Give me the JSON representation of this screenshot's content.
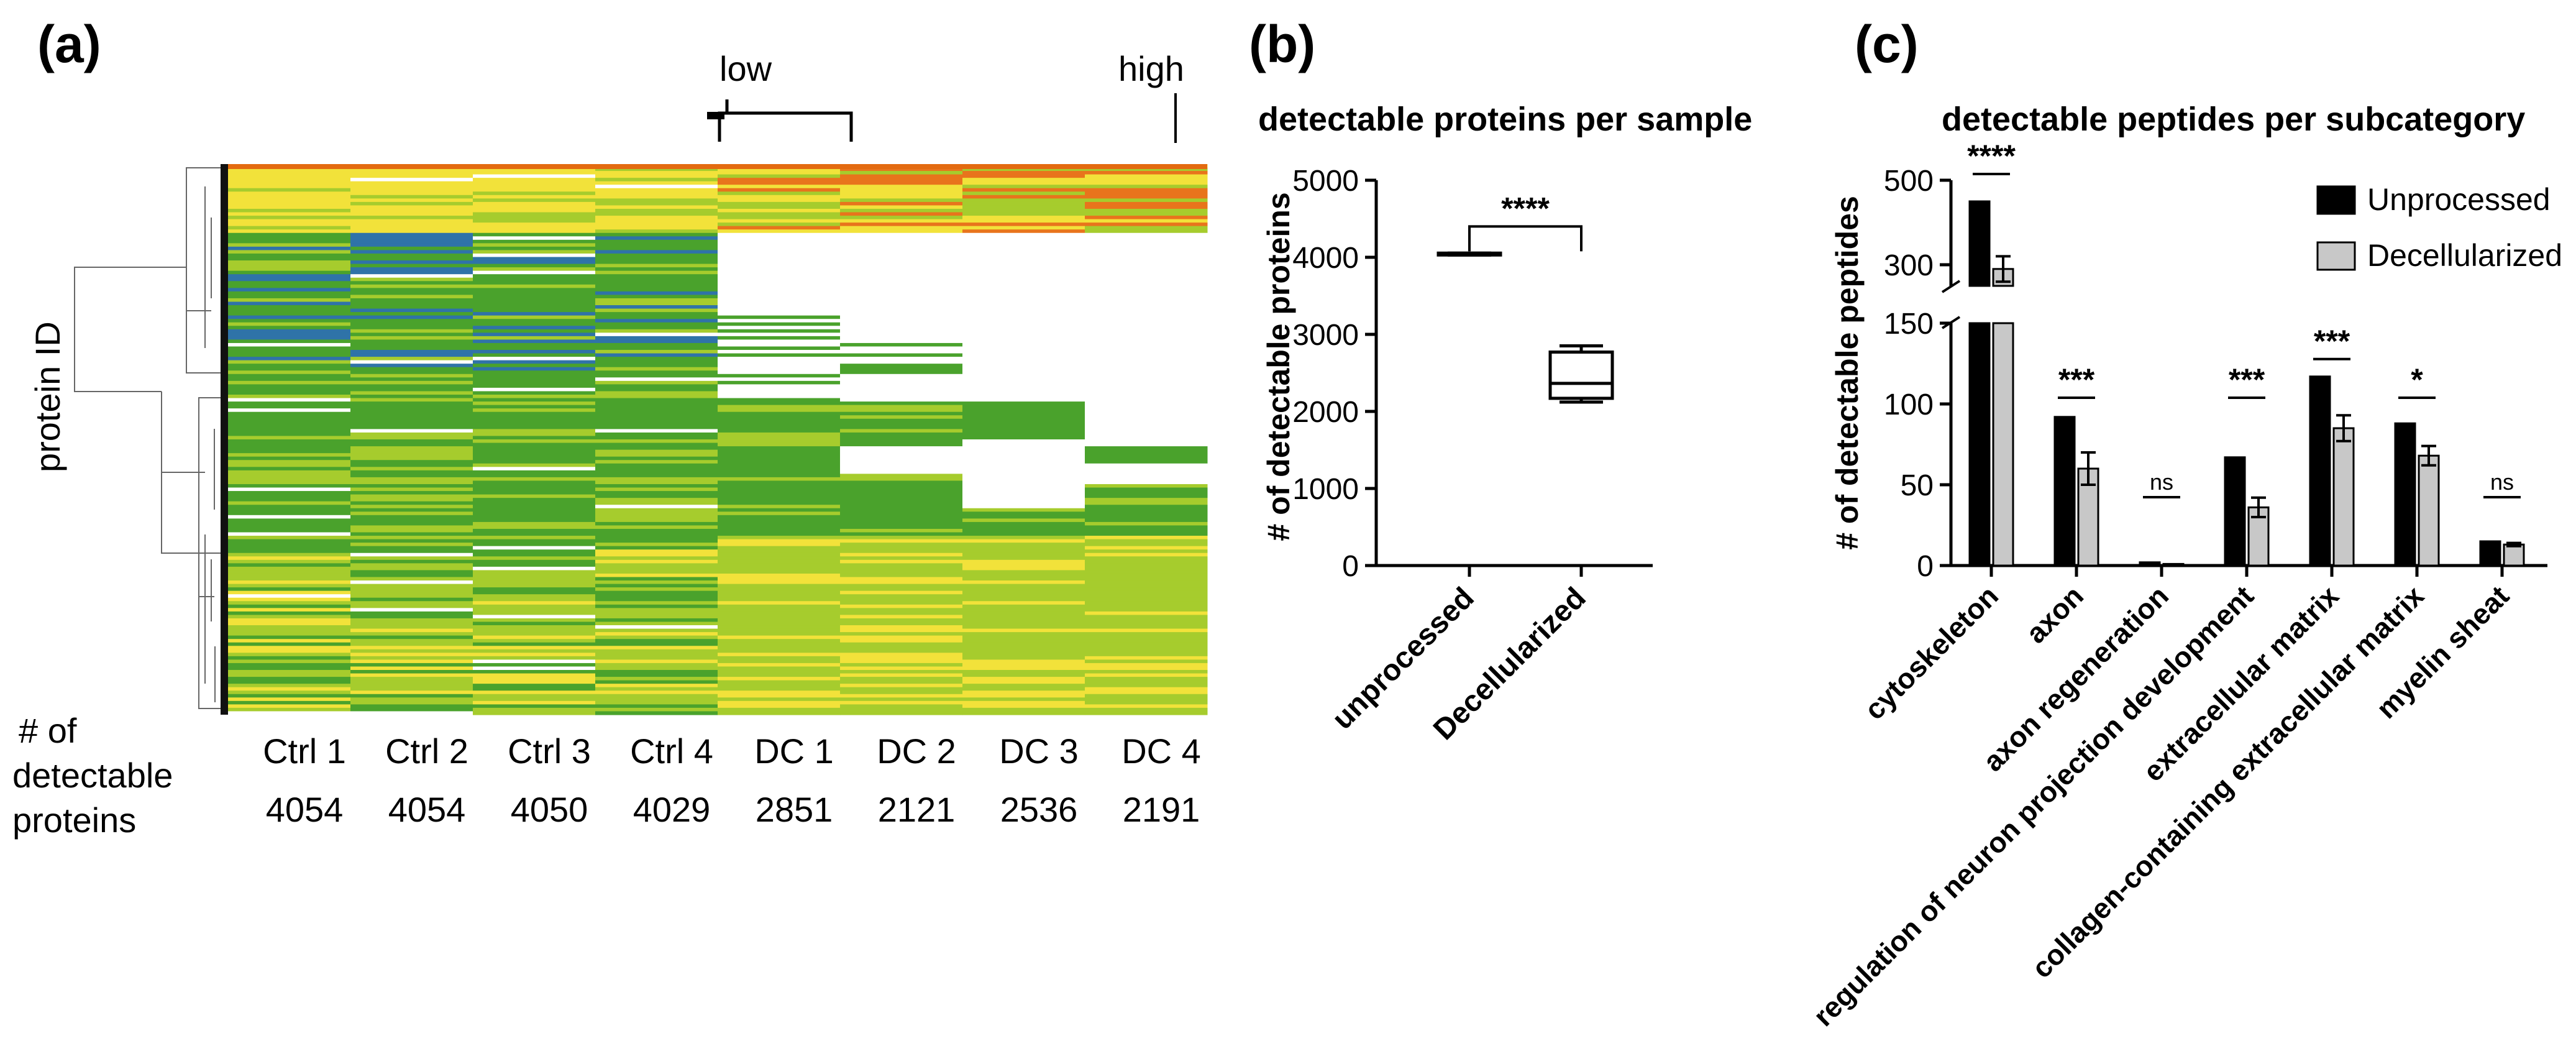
{
  "panels": {
    "a": {
      "label": "(a)"
    },
    "b": {
      "label": "(b)"
    },
    "c": {
      "label": "(c)"
    }
  },
  "chart_data": [
    {
      "type": "heatmap",
      "panel": "a",
      "ylabel": "protein ID",
      "color_scale": {
        "low_label": "low",
        "high_label": "high",
        "colors": [
          "#2f73a8",
          "#4aa22c",
          "#a6cc2d",
          "#f2e23a",
          "#e8741c"
        ]
      },
      "row_label_prefix": "# of detectable proteins",
      "row_label_lines": [
        "# of",
        "detectable",
        "proteins"
      ],
      "samples": [
        "Ctrl 1",
        "Ctrl 2",
        "Ctrl 3",
        "Ctrl 4",
        "DC 1",
        "DC 2",
        "DC 3",
        "DC 4"
      ],
      "detectable_proteins": [
        "4054",
        "4054",
        "4050",
        "4029",
        "2851",
        "2121",
        "2536",
        "2191"
      ]
    },
    {
      "type": "boxplot",
      "panel": "b",
      "title": "detectable proteins per sample",
      "ylabel": "# of detectable proteins",
      "ylim": [
        0,
        5000
      ],
      "yticks": [
        0,
        1000,
        2000,
        3000,
        4000,
        5000
      ],
      "categories": [
        "unprocessed",
        "Decellularized"
      ],
      "boxes": [
        {
          "min": 4029,
          "q1": 4035,
          "median": 4052,
          "q3": 4054,
          "max": 4054
        },
        {
          "min": 2121,
          "q1": 2170,
          "median": 2364,
          "q3": 2770,
          "max": 2851
        }
      ],
      "significance": "****"
    },
    {
      "type": "bar",
      "panel": "c",
      "title": "detectable peptides per subcategory",
      "ylabel": "# of detectable peptides",
      "ylim": [
        0,
        500
      ],
      "axis_break": [
        150,
        250
      ],
      "yticks": [
        0,
        50,
        100,
        150,
        300,
        500
      ],
      "categories": [
        "cytoskeleton",
        "axon",
        "axon regeneration",
        "regulation of neuron projection development",
        "extracellular matrix",
        "collagen-containing extracellular matrix",
        "myelin sheat"
      ],
      "series": [
        {
          "name": "Unprocessed",
          "color": "#000000",
          "values": [
            450,
            92,
            2,
            67,
            117,
            88,
            15
          ],
          "errors": [
            0,
            0,
            0,
            0,
            0,
            0,
            0
          ]
        },
        {
          "name": "Decellularized",
          "color": "#c8c8c8",
          "values": [
            290,
            60,
            1,
            36,
            85,
            68,
            13
          ],
          "errors": [
            30,
            10,
            0,
            6,
            8,
            6,
            1
          ]
        }
      ],
      "significance": [
        "****",
        "***",
        "ns",
        "***",
        "***",
        "*",
        "ns"
      ]
    }
  ]
}
